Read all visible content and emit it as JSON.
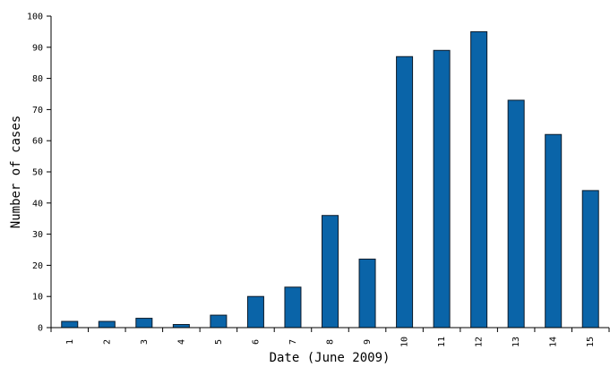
{
  "chart_data": {
    "type": "bar",
    "categories": [
      "1",
      "2",
      "3",
      "4",
      "5",
      "6",
      "7",
      "8",
      "9",
      "10",
      "11",
      "12",
      "13",
      "14",
      "15"
    ],
    "values": [
      2,
      2,
      3,
      1,
      4,
      10,
      13,
      36,
      22,
      87,
      89,
      95,
      73,
      62,
      44
    ],
    "xlabel": "Date (June 2009)",
    "ylabel": "Number of cases",
    "ylim": [
      0,
      100
    ],
    "yticks": [
      0,
      10,
      20,
      30,
      40,
      50,
      60,
      70,
      80,
      90,
      100
    ],
    "grid": false,
    "legend": "none",
    "bar_color": "#0a64a8"
  }
}
